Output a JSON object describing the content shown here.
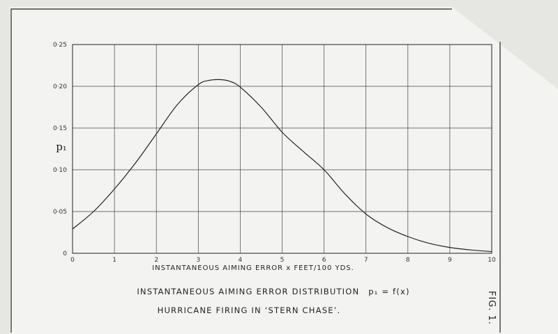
{
  "chart_data": {
    "type": "line",
    "title": "INSTANTANEOUS AIMING ERROR DISTRIBUTION",
    "title_formula": "p₁ = f(x)",
    "subtitle": "HURRICANE FIRING IN ‘STERN CHASE’.",
    "xlabel": "INSTANTANEOUS AIMING ERROR x FEET/100 YDS.",
    "ylabel": "p₁",
    "figure_label": "FIG. 1.",
    "xlim": [
      0,
      10
    ],
    "ylim": [
      0,
      0.25
    ],
    "x_ticks": [
      0,
      1,
      2,
      3,
      4,
      5,
      6,
      7,
      8,
      9,
      10
    ],
    "x_tick_labels": [
      "0",
      "1",
      "2",
      "3",
      "4",
      "5",
      "6",
      "7",
      "8",
      "9",
      "10"
    ],
    "y_ticks": [
      0,
      0.05,
      0.1,
      0.15,
      0.2,
      0.25
    ],
    "y_tick_labels": [
      "0",
      "0·05",
      "0·10",
      "0·15",
      "0·20",
      "0·25"
    ],
    "grid": true,
    "series": [
      {
        "x": [
          0,
          0.5,
          1,
          1.5,
          2,
          2.5,
          3,
          3.25,
          3.5,
          3.75,
          4,
          4.5,
          5,
          5.5,
          6,
          6.5,
          7,
          7.5,
          8,
          8.5,
          9,
          9.5,
          10
        ],
        "values": [
          0.029,
          0.05,
          0.077,
          0.108,
          0.143,
          0.178,
          0.202,
          0.207,
          0.208,
          0.206,
          0.199,
          0.175,
          0.145,
          0.122,
          0.1,
          0.071,
          0.047,
          0.031,
          0.02,
          0.012,
          0.007,
          0.004,
          0.002
        ]
      }
    ]
  }
}
